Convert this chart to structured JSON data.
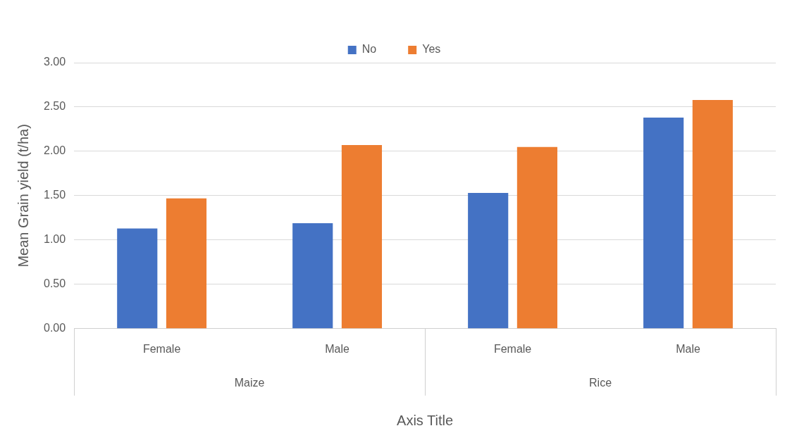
{
  "chart_data": {
    "type": "bar",
    "ylabel": "Mean Grain yield (t/ha)",
    "xlabel": "Axis Title",
    "categories": [
      "Female",
      "Male",
      "Female",
      "Male"
    ],
    "series": [
      {
        "name": "No",
        "color": "#4472c4",
        "values": [
          1.13,
          1.19,
          1.53,
          2.38
        ]
      },
      {
        "name": "Yes",
        "color": "#ed7d31",
        "values": [
          1.47,
          2.07,
          2.05,
          2.58
        ]
      }
    ],
    "ylim": [
      0,
      3
    ],
    "yticks": [
      {
        "value": 0,
        "label": "0.00"
      },
      {
        "value": 0.5,
        "label": "0.50"
      },
      {
        "value": 1,
        "label": "1.00"
      },
      {
        "value": 1.5,
        "label": "1.50"
      },
      {
        "value": 2,
        "label": "2.00"
      },
      {
        "value": 2.5,
        "label": "2.50"
      },
      {
        "value": 3,
        "label": "3.00"
      }
    ],
    "grid": "y",
    "legend": "top",
    "annotations": [
      "Maize",
      "Rice"
    ]
  }
}
